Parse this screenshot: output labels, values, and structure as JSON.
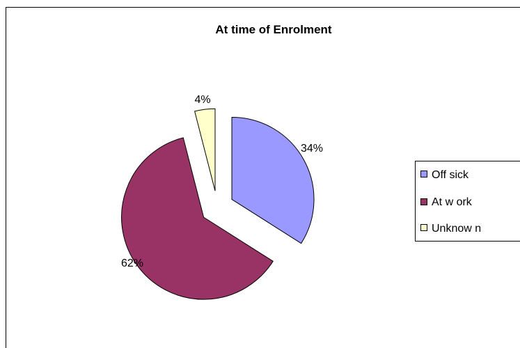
{
  "chart_data": {
    "type": "pie",
    "title": "At time of Enrolment",
    "categories": [
      "Off sick",
      "At work",
      "Unknown"
    ],
    "legend_labels": [
      "Off sick",
      "At w ork",
      "Unknow n"
    ],
    "values": [
      34,
      62,
      4
    ],
    "data_labels": [
      "34%",
      "62%",
      "4%"
    ],
    "colors": [
      "#9999FF",
      "#993366",
      "#FFFFCC"
    ],
    "exploded": true,
    "legend_position": "right"
  }
}
